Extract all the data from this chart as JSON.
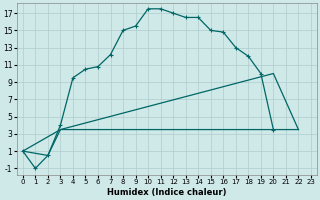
{
  "xlabel": "Humidex (Indice chaleur)",
  "background_color": "#cfe8e8",
  "grid_color": "#b0cccc",
  "line_color": "#006666",
  "xlim": [
    -0.5,
    23.5
  ],
  "ylim": [
    -1.8,
    18.2
  ],
  "xticks": [
    0,
    1,
    2,
    3,
    4,
    5,
    6,
    7,
    8,
    9,
    10,
    11,
    12,
    13,
    14,
    15,
    16,
    17,
    18,
    19,
    20,
    21,
    22,
    23
  ],
  "yticks": [
    -1,
    1,
    3,
    5,
    7,
    9,
    11,
    13,
    15,
    17
  ],
  "line1_x": [
    0,
    1,
    2,
    3,
    4,
    5,
    6,
    7,
    8,
    9,
    10,
    11,
    12,
    13,
    14,
    15,
    16,
    17,
    18,
    19,
    20
  ],
  "line1_y": [
    1,
    -1,
    0.5,
    4,
    9.5,
    10.5,
    10.8,
    12.2,
    15,
    15.5,
    17.5,
    17.5,
    17,
    16.5,
    16.5,
    15,
    14.8,
    13,
    12,
    10,
    3.5
  ],
  "line2_x": [
    0,
    2,
    3,
    20,
    22
  ],
  "line2_y": [
    1,
    0.5,
    3.5,
    10,
    3.5
  ],
  "line3_x": [
    0,
    3,
    20,
    22
  ],
  "line3_y": [
    1,
    3.5,
    3.5,
    3.5
  ],
  "xtick_fontsize": 5,
  "ytick_fontsize": 5.5,
  "xlabel_fontsize": 6
}
